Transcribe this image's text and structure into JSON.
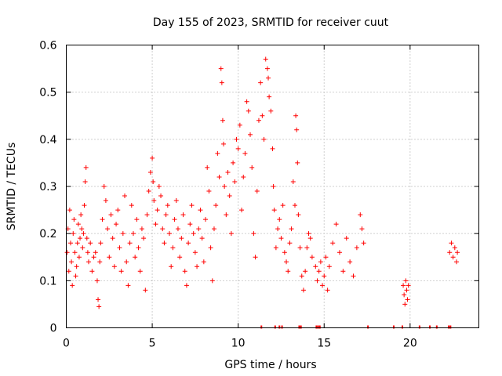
{
  "chart_data": {
    "type": "scatter",
    "title": "Day 155 of 2023, SRMTID for receiver cuut",
    "xlabel": "GPS time / hours",
    "ylabel": "SRMTID / TECUs",
    "xlim": [
      0,
      24
    ],
    "ylim": [
      0,
      0.6
    ],
    "xticks": [
      0,
      5,
      10,
      15,
      20
    ],
    "yticks": [
      0,
      0.1,
      0.2,
      0.3,
      0.4,
      0.5,
      0.6
    ],
    "xtick_labels": [
      "0",
      "5",
      "10",
      "15",
      "20"
    ],
    "ytick_labels": [
      "0",
      "0.1",
      "0.2",
      "0.3",
      "0.4",
      "0.5",
      "0.6"
    ],
    "grid": true,
    "marker": "+",
    "color": "#ff0000",
    "series": [
      {
        "name": "SRMTID",
        "points": [
          [
            0.05,
            0.16
          ],
          [
            0.1,
            0.21
          ],
          [
            0.15,
            0.12
          ],
          [
            0.2,
            0.25
          ],
          [
            0.25,
            0.18
          ],
          [
            0.3,
            0.14
          ],
          [
            0.35,
            0.09
          ],
          [
            0.4,
            0.2
          ],
          [
            0.45,
            0.23
          ],
          [
            0.5,
            0.16
          ],
          [
            0.55,
            0.11
          ],
          [
            0.6,
            0.13
          ],
          [
            0.65,
            0.18
          ],
          [
            0.7,
            0.22
          ],
          [
            0.75,
            0.15
          ],
          [
            0.8,
            0.19
          ],
          [
            0.85,
            0.24
          ],
          [
            0.9,
            0.21
          ],
          [
            0.95,
            0.17
          ],
          [
            1.0,
            0.2
          ],
          [
            1.05,
            0.26
          ],
          [
            1.1,
            0.31
          ],
          [
            1.15,
            0.34
          ],
          [
            1.2,
            0.19
          ],
          [
            1.25,
            0.16
          ],
          [
            1.3,
            0.14
          ],
          [
            1.4,
            0.18
          ],
          [
            1.5,
            0.12
          ],
          [
            1.6,
            0.15
          ],
          [
            1.7,
            0.16
          ],
          [
            1.8,
            0.1
          ],
          [
            1.85,
            0.06
          ],
          [
            1.9,
            0.045
          ],
          [
            1.95,
            0.14
          ],
          [
            2.0,
            0.18
          ],
          [
            2.1,
            0.23
          ],
          [
            2.2,
            0.3
          ],
          [
            2.3,
            0.27
          ],
          [
            2.4,
            0.21
          ],
          [
            2.5,
            0.15
          ],
          [
            2.6,
            0.24
          ],
          [
            2.7,
            0.19
          ],
          [
            2.8,
            0.13
          ],
          [
            2.9,
            0.22
          ],
          [
            3.0,
            0.25
          ],
          [
            3.1,
            0.17
          ],
          [
            3.2,
            0.12
          ],
          [
            3.3,
            0.2
          ],
          [
            3.4,
            0.28
          ],
          [
            3.5,
            0.14
          ],
          [
            3.6,
            0.09
          ],
          [
            3.7,
            0.18
          ],
          [
            3.8,
            0.26
          ],
          [
            3.9,
            0.2
          ],
          [
            4.0,
            0.15
          ],
          [
            4.1,
            0.23
          ],
          [
            4.2,
            0.17
          ],
          [
            4.3,
            0.12
          ],
          [
            4.4,
            0.21
          ],
          [
            4.5,
            0.19
          ],
          [
            4.6,
            0.08
          ],
          [
            4.7,
            0.24
          ],
          [
            4.8,
            0.29
          ],
          [
            4.9,
            0.33
          ],
          [
            5.0,
            0.36
          ],
          [
            5.05,
            0.31
          ],
          [
            5.1,
            0.27
          ],
          [
            5.2,
            0.22
          ],
          [
            5.3,
            0.25
          ],
          [
            5.4,
            0.3
          ],
          [
            5.5,
            0.28
          ],
          [
            5.6,
            0.21
          ],
          [
            5.7,
            0.18
          ],
          [
            5.8,
            0.24
          ],
          [
            5.9,
            0.26
          ],
          [
            6.0,
            0.2
          ],
          [
            6.1,
            0.13
          ],
          [
            6.2,
            0.17
          ],
          [
            6.3,
            0.23
          ],
          [
            6.4,
            0.27
          ],
          [
            6.5,
            0.21
          ],
          [
            6.6,
            0.15
          ],
          [
            6.7,
            0.19
          ],
          [
            6.8,
            0.24
          ],
          [
            6.9,
            0.12
          ],
          [
            7.0,
            0.09
          ],
          [
            7.1,
            0.18
          ],
          [
            7.2,
            0.22
          ],
          [
            7.3,
            0.26
          ],
          [
            7.4,
            0.2
          ],
          [
            7.5,
            0.16
          ],
          [
            7.6,
            0.13
          ],
          [
            7.7,
            0.21
          ],
          [
            7.8,
            0.25
          ],
          [
            7.9,
            0.19
          ],
          [
            8.0,
            0.14
          ],
          [
            8.1,
            0.23
          ],
          [
            8.2,
            0.34
          ],
          [
            8.3,
            0.29
          ],
          [
            8.4,
            0.17
          ],
          [
            8.5,
            0.1
          ],
          [
            8.6,
            0.21
          ],
          [
            8.7,
            0.26
          ],
          [
            8.8,
            0.37
          ],
          [
            8.9,
            0.32
          ],
          [
            9.0,
            0.55
          ],
          [
            9.05,
            0.52
          ],
          [
            9.1,
            0.44
          ],
          [
            9.15,
            0.39
          ],
          [
            9.2,
            0.3
          ],
          [
            9.3,
            0.24
          ],
          [
            9.4,
            0.33
          ],
          [
            9.5,
            0.28
          ],
          [
            9.6,
            0.2
          ],
          [
            9.7,
            0.35
          ],
          [
            9.8,
            0.31
          ],
          [
            9.9,
            0.4
          ],
          [
            10.0,
            0.38
          ],
          [
            10.1,
            0.43
          ],
          [
            10.2,
            0.25
          ],
          [
            10.3,
            0.32
          ],
          [
            10.4,
            0.37
          ],
          [
            10.5,
            0.48
          ],
          [
            10.6,
            0.46
          ],
          [
            10.7,
            0.41
          ],
          [
            10.8,
            0.34
          ],
          [
            10.9,
            0.2
          ],
          [
            11.0,
            0.15
          ],
          [
            11.1,
            0.29
          ],
          [
            11.2,
            0.44
          ],
          [
            11.3,
            0.52
          ],
          [
            11.4,
            0.45
          ],
          [
            11.5,
            0.4
          ],
          [
            11.6,
            0.57
          ],
          [
            11.7,
            0.55
          ],
          [
            11.75,
            0.53
          ],
          [
            11.8,
            0.49
          ],
          [
            11.9,
            0.46
          ],
          [
            12.0,
            0.38
          ],
          [
            12.05,
            0.3
          ],
          [
            12.1,
            0.25
          ],
          [
            12.2,
            0.17
          ],
          [
            12.3,
            0.21
          ],
          [
            12.4,
            0.23
          ],
          [
            12.5,
            0.19
          ],
          [
            12.6,
            0.26
          ],
          [
            12.7,
            0.16
          ],
          [
            12.8,
            0.14
          ],
          [
            12.9,
            0.12
          ],
          [
            13.0,
            0.18
          ],
          [
            13.1,
            0.21
          ],
          [
            13.2,
            0.31
          ],
          [
            13.3,
            0.26
          ],
          [
            13.35,
            0.45
          ],
          [
            13.4,
            0.42
          ],
          [
            13.45,
            0.35
          ],
          [
            13.5,
            0.24
          ],
          [
            13.6,
            0.17
          ],
          [
            13.7,
            0.11
          ],
          [
            13.8,
            0.08
          ],
          [
            13.9,
            0.12
          ],
          [
            14.0,
            0.17
          ],
          [
            14.1,
            0.2
          ],
          [
            14.2,
            0.19
          ],
          [
            14.3,
            0.15
          ],
          [
            14.5,
            0.13
          ],
          [
            14.6,
            0.1
          ],
          [
            14.7,
            0.12
          ],
          [
            14.8,
            0.14
          ],
          [
            14.9,
            0.09
          ],
          [
            15.0,
            0.11
          ],
          [
            15.1,
            0.15
          ],
          [
            15.2,
            0.08
          ],
          [
            15.3,
            0.13
          ],
          [
            15.5,
            0.18
          ],
          [
            15.7,
            0.22
          ],
          [
            15.9,
            0.16
          ],
          [
            16.1,
            0.12
          ],
          [
            16.3,
            0.19
          ],
          [
            16.5,
            0.14
          ],
          [
            16.7,
            0.11
          ],
          [
            16.9,
            0.17
          ],
          [
            17.1,
            0.24
          ],
          [
            17.2,
            0.21
          ],
          [
            17.3,
            0.18
          ],
          [
            19.6,
            0.09
          ],
          [
            19.65,
            0.07
          ],
          [
            19.7,
            0.05
          ],
          [
            19.75,
            0.1
          ],
          [
            19.8,
            0.08
          ],
          [
            19.85,
            0.06
          ],
          [
            19.9,
            0.09
          ],
          [
            22.3,
            0.16
          ],
          [
            22.4,
            0.18
          ],
          [
            22.5,
            0.15
          ],
          [
            22.6,
            0.17
          ],
          [
            22.7,
            0.14
          ],
          [
            22.75,
            0.16
          ]
        ]
      }
    ],
    "zero_markers_x": [
      11.35,
      12.15,
      12.4,
      12.55,
      13.55,
      13.65,
      14.55,
      14.65,
      14.75,
      17.55,
      19.05,
      19.55,
      20.55,
      21.15,
      21.55,
      22.25,
      22.35
    ]
  }
}
